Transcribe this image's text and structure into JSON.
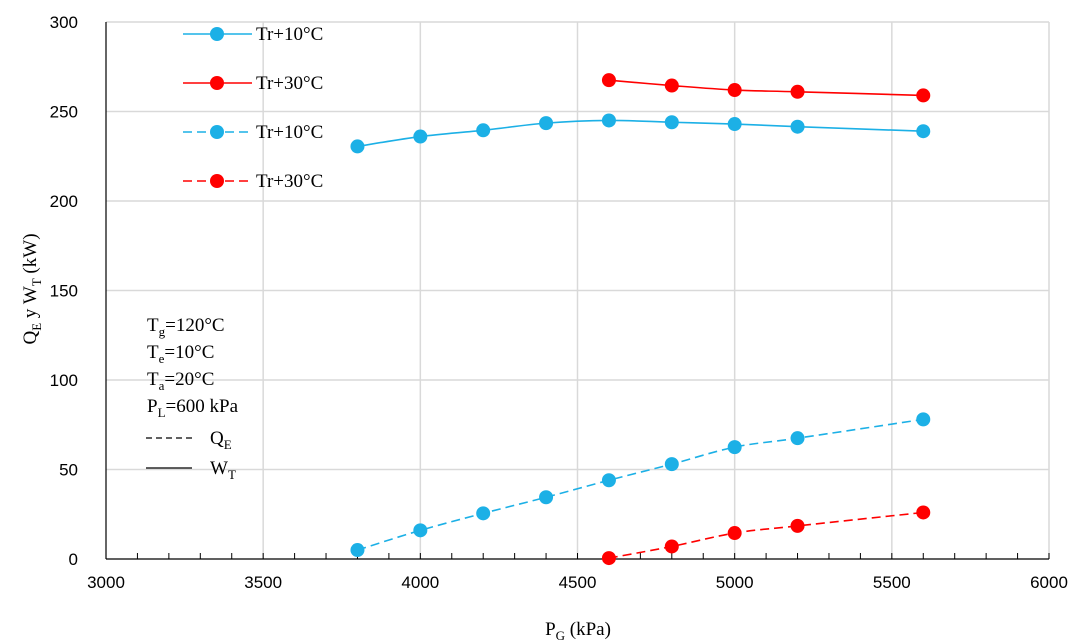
{
  "chart_data": {
    "type": "line",
    "xlabel": {
      "main": "P",
      "sub": "G",
      "rest": " (kPa)"
    },
    "ylabel": {
      "q": "Q",
      "q_sub": "E",
      "mid": " y W",
      "w_sub": "T",
      "rest": "  (kW)"
    },
    "xlim": [
      3000,
      6000
    ],
    "ylim": [
      0,
      300
    ],
    "x_ticks": [
      "3000",
      "3500",
      "4000",
      "4500",
      "5000",
      "5500",
      "6000"
    ],
    "y_ticks": [
      "0",
      "50",
      "100",
      "150",
      "200",
      "250",
      "300"
    ],
    "grid": true,
    "series": [
      {
        "name": "Tr+10°C",
        "color": "#1CB0E6",
        "dash": "solid",
        "quantity": "W_T",
        "x": [
          3800,
          4000,
          4200,
          4400,
          4600,
          4800,
          5000,
          5200,
          5600
        ],
        "y": [
          230.5,
          236,
          239.5,
          243.5,
          245,
          244,
          243,
          241.5,
          239
        ]
      },
      {
        "name": "Tr+30°C",
        "color": "#FF0000",
        "dash": "solid",
        "quantity": "W_T",
        "x": [
          4600,
          4800,
          5000,
          5200,
          5600
        ],
        "y": [
          267.5,
          264.5,
          262,
          261,
          259
        ]
      },
      {
        "name": "Tr+10°C",
        "color": "#1CB0E6",
        "dash": "dashed",
        "quantity": "Q_E",
        "x": [
          3800,
          4000,
          4200,
          4400,
          4600,
          4800,
          5000,
          5200,
          5600
        ],
        "y": [
          5,
          16,
          25.5,
          34.5,
          44,
          53,
          62.5,
          67.5,
          78
        ]
      },
      {
        "name": "Tr+30°C",
        "color": "#FF0000",
        "dash": "dashed",
        "quantity": "Q_E",
        "x": [
          4600,
          4800,
          5000,
          5200,
          5600
        ],
        "y": [
          0.5,
          7,
          14.5,
          18.5,
          26
        ]
      }
    ],
    "legend_position": "top-left",
    "annotations": {
      "conditions": [
        {
          "main": "T",
          "sub": "g",
          "rest": "=120°C"
        },
        {
          "main": "T",
          "sub": "e",
          "rest": "=10°C"
        },
        {
          "main": "T",
          "sub": "a",
          "rest": "=20°C"
        },
        {
          "main": "P",
          "sub": "L",
          "rest": "=600 kPa"
        }
      ],
      "line_key": [
        {
          "style": "dashed",
          "main": "Q",
          "sub": "E"
        },
        {
          "style": "solid",
          "main": "W",
          "sub": "T"
        }
      ]
    }
  }
}
